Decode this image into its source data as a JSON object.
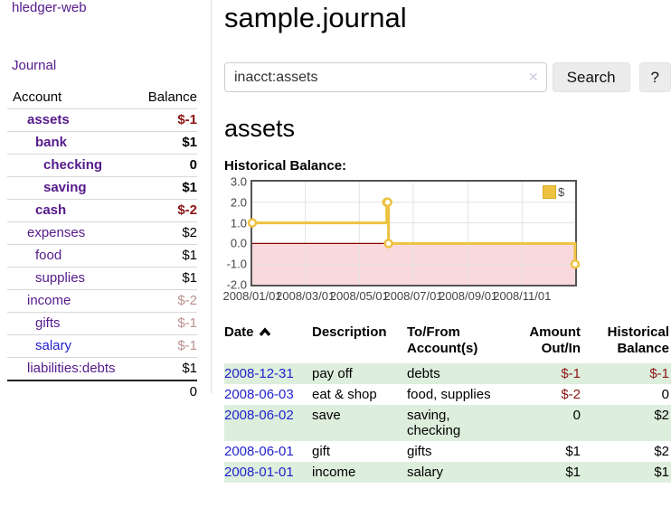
{
  "sidebar": {
    "brand": "hledger-web",
    "nav": {
      "journal": "Journal"
    },
    "accounts_table": {
      "account_header": "Account",
      "balance_header": "Balance",
      "rows": [
        {
          "name": "assets",
          "depth": 1,
          "bold": true,
          "link_color": "purple",
          "balance": "$-1",
          "balance_style": "neg-strong"
        },
        {
          "name": "bank",
          "depth": 2,
          "bold": true,
          "link_color": "purple",
          "balance": "$1",
          "balance_style": ""
        },
        {
          "name": "checking",
          "depth": 3,
          "bold": true,
          "link_color": "purple",
          "balance": "0",
          "balance_style": ""
        },
        {
          "name": "saving",
          "depth": 3,
          "bold": true,
          "link_color": "purple",
          "balance": "$1",
          "balance_style": ""
        },
        {
          "name": "cash",
          "depth": 2,
          "bold": true,
          "link_color": "purple",
          "balance": "$-2",
          "balance_style": "neg-strong"
        },
        {
          "name": "expenses",
          "depth": 1,
          "bold": false,
          "link_color": "purple",
          "balance": "$2",
          "balance_style": ""
        },
        {
          "name": "food",
          "depth": 2,
          "bold": false,
          "link_color": "purple",
          "balance": "$1",
          "balance_style": ""
        },
        {
          "name": "supplies",
          "depth": 2,
          "bold": false,
          "link_color": "purple",
          "balance": "$1",
          "balance_style": ""
        },
        {
          "name": "income",
          "depth": 1,
          "bold": false,
          "link_color": "purple",
          "balance": "$-2",
          "balance_style": "neg-pale"
        },
        {
          "name": "gifts",
          "depth": 2,
          "bold": false,
          "link_color": "purple",
          "balance": "$-1",
          "balance_style": "neg-pale"
        },
        {
          "name": "salary",
          "depth": 2,
          "bold": false,
          "link_color": "blue",
          "balance": "$-1",
          "balance_style": "neg-pale"
        },
        {
          "name": "liabilities:debts",
          "depth": 1,
          "bold": false,
          "link_color": "purple",
          "balance": "$1",
          "balance_style": ""
        }
      ],
      "total": "0"
    }
  },
  "main": {
    "title": "sample.journal",
    "search": {
      "value": "inacct:assets",
      "clear_icon": "✕",
      "search_button": "Search",
      "help_button": "?"
    },
    "account_heading": "assets",
    "chart_heading": "Historical Balance:",
    "register_table": {
      "headers": {
        "date": "Date",
        "description": "Description",
        "tofrom": "To/From Account(s)",
        "amount": "Amount Out/In",
        "balance": "Historical Balance"
      },
      "sort": "ascending",
      "rows": [
        {
          "date": "2008-12-31",
          "description": "pay off",
          "accounts": "debts",
          "amount": "$-1",
          "amount_neg": true,
          "balance": "$-1",
          "balance_neg": true,
          "shade": true
        },
        {
          "date": "2008-06-03",
          "description": "eat & shop",
          "accounts": "food, supplies",
          "amount": "$-2",
          "amount_neg": true,
          "balance": "0",
          "balance_neg": false,
          "shade": false
        },
        {
          "date": "2008-06-02",
          "description": "save",
          "accounts": "saving, checking",
          "amount": "0",
          "amount_neg": false,
          "balance": "$2",
          "balance_neg": false,
          "shade": true
        },
        {
          "date": "2008-06-01",
          "description": "gift",
          "accounts": "gifts",
          "amount": "$1",
          "amount_neg": false,
          "balance": "$2",
          "balance_neg": false,
          "shade": false
        },
        {
          "date": "2008-01-01",
          "description": "income",
          "accounts": "salary",
          "amount": "$1",
          "amount_neg": false,
          "balance": "$1",
          "balance_neg": false,
          "shade": true
        }
      ]
    }
  },
  "chart_data": {
    "type": "line",
    "title": "Historical Balance:",
    "step": true,
    "xlim_days": [
      0,
      365
    ],
    "ylim": [
      -2,
      3
    ],
    "series": [
      {
        "name": "$",
        "color": "#edc240",
        "points": [
          {
            "date": "2008-01-01",
            "day": 0,
            "balance": 1
          },
          {
            "date": "2008-06-01",
            "day": 152,
            "balance": 2
          },
          {
            "date": "2008-06-02",
            "day": 153,
            "balance": 2
          },
          {
            "date": "2008-06-03",
            "day": 154,
            "balance": 0
          },
          {
            "date": "2008-12-31",
            "day": 365,
            "balance": -1
          }
        ]
      }
    ],
    "x_ticks": [
      {
        "day": 0,
        "label": "2008/01/01"
      },
      {
        "day": 60,
        "label": "2008/03/01"
      },
      {
        "day": 121,
        "label": "2008/05/01"
      },
      {
        "day": 182,
        "label": "2008/07/01"
      },
      {
        "day": 244,
        "label": "2008/09/01"
      },
      {
        "day": 305,
        "label": "2008/11/01"
      }
    ],
    "y_ticks": [
      {
        "value": 3,
        "label": "3.0"
      },
      {
        "value": 2,
        "label": "2.0"
      },
      {
        "value": 1,
        "label": "1.0"
      },
      {
        "value": 0,
        "label": "0.0"
      },
      {
        "value": -1,
        "label": "-1.0"
      },
      {
        "value": -2,
        "label": "-2.0"
      }
    ],
    "grid_days": [
      60,
      121,
      182,
      244,
      305
    ],
    "grid_values": [
      2,
      1,
      -1
    ],
    "grid_color": "#e3e3e3",
    "zero_line_color": "#8b0000",
    "negative_band_color": "#f9d9dc",
    "legend": {
      "label": "$",
      "swatch_color": "#edc240",
      "position": "top-right"
    }
  }
}
